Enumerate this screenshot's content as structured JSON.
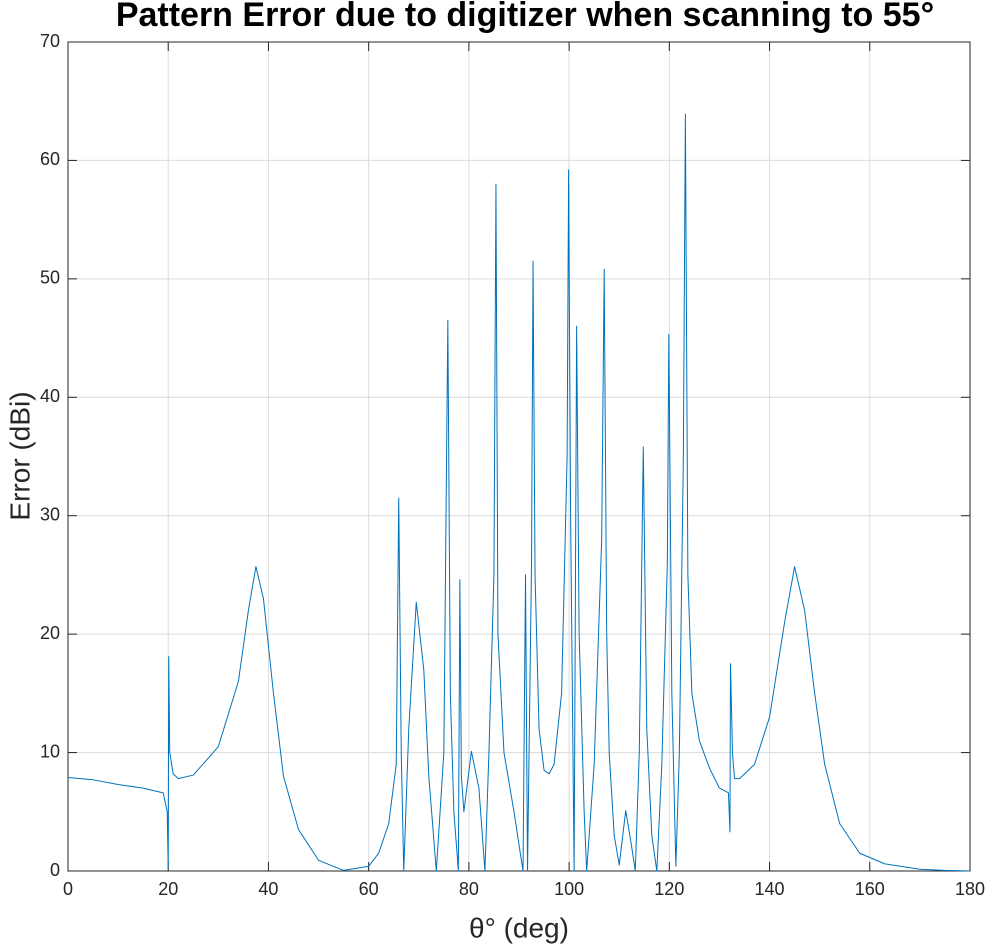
{
  "chart_data": {
    "type": "line",
    "title": "Pattern Error due to digitizer when scanning to 55°",
    "x_label": "θ° (deg)",
    "y_label": "Error (dBi)",
    "color": "#0072bd",
    "grid": true,
    "xlim": [
      0,
      180
    ],
    "xticks": [
      0,
      20,
      40,
      60,
      80,
      100,
      120,
      140,
      160,
      180
    ],
    "ylim": [
      0,
      70
    ],
    "yticks": [
      0,
      10,
      20,
      30,
      40,
      50,
      60,
      70
    ],
    "x": [
      0,
      5,
      10,
      15,
      19,
      19.8,
      20,
      20.1,
      20.3,
      21,
      22,
      25,
      30,
      34,
      36,
      37.5,
      39,
      41,
      43,
      46,
      50,
      55,
      60,
      62,
      64,
      65.5,
      66,
      66.5,
      67,
      68,
      69.5,
      71,
      72,
      73.5,
      75,
      75.8,
      76.3,
      77,
      77.9,
      78.2,
      78.5,
      79,
      80.5,
      82,
      83.2,
      84,
      85,
      85.4,
      85.8,
      87,
      89,
      90.8,
      91.3,
      91.7,
      92.5,
      92.8,
      93.2,
      94,
      95,
      96,
      97,
      98.5,
      99.6,
      99.9,
      100.3,
      101,
      101.5,
      102,
      103,
      103.5,
      105,
      106.5,
      107,
      107.5,
      108,
      109,
      110,
      111.3,
      112.5,
      113.2,
      114,
      114.8,
      115.5,
      116.5,
      117.5,
      118.5,
      119.6,
      119.9,
      120.5,
      121.3,
      122,
      122.8,
      123.2,
      123.7,
      124.5,
      126,
      128,
      130,
      131.8,
      132.1,
      132.2,
      132.6,
      133,
      134,
      137,
      140,
      143,
      145,
      147,
      149,
      151,
      154,
      158,
      163,
      170,
      175,
      180
    ],
    "values": [
      7.9,
      7.7,
      7.3,
      7.0,
      6.6,
      5,
      0.2,
      18.1,
      10,
      8.2,
      7.8,
      8.1,
      10.5,
      16,
      22,
      25.7,
      23,
      15,
      8,
      3.5,
      0.9,
      0.05,
      0.4,
      1.5,
      4,
      9,
      31.5,
      10,
      0,
      12,
      22.7,
      17,
      8,
      0,
      10,
      46.5,
      15,
      5,
      0,
      24.6,
      8,
      5,
      10.1,
      7,
      0,
      10,
      25,
      58,
      20,
      10,
      5,
      0,
      25,
      0,
      26,
      51.5,
      25,
      12,
      8.5,
      8.2,
      9,
      15,
      35,
      59.2,
      30,
      0,
      46,
      20,
      5,
      0,
      9,
      28,
      50.8,
      20,
      10,
      3,
      0.5,
      5.1,
      2,
      0,
      10,
      35.8,
      12,
      3,
      0,
      9,
      26,
      45.3,
      15,
      0.4,
      10,
      35,
      63.9,
      25,
      15,
      11,
      8.7,
      7,
      6.6,
      3.3,
      17.5,
      10,
      7.8,
      7.8,
      9,
      13,
      21,
      25.7,
      22,
      15,
      9,
      4,
      1.5,
      0.6,
      0.15,
      0.05,
      0
    ]
  }
}
